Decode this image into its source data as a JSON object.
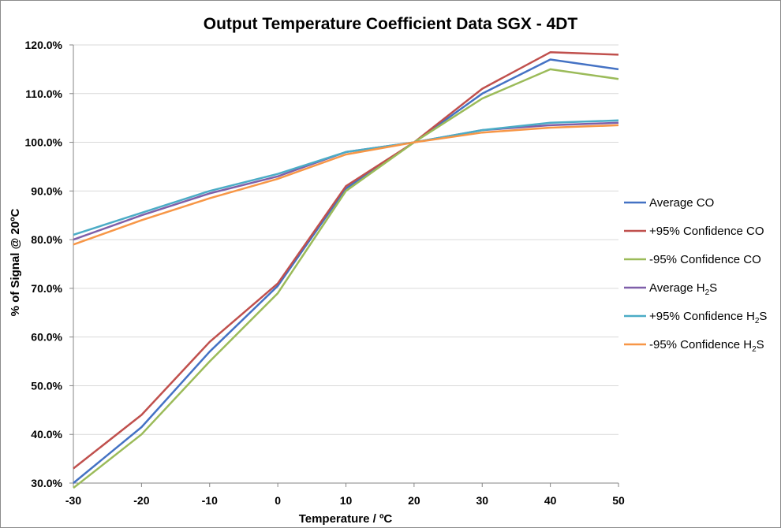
{
  "chart_data": {
    "type": "line",
    "title": "Output Temperature Coefficient Data SGX - 4DT",
    "xlabel": "Temperature  / ºC",
    "ylabel": "% of Signal @ 20ºC",
    "x": [
      -30,
      -20,
      -10,
      0,
      10,
      20,
      30,
      40,
      50
    ],
    "xlim": [
      -30,
      50
    ],
    "ylim": [
      30,
      120
    ],
    "x_ticks": [
      "-30",
      "-20",
      "-10",
      "0",
      "10",
      "20",
      "30",
      "40",
      "50"
    ],
    "y_ticks": [
      "30.0%",
      "40.0%",
      "50.0%",
      "60.0%",
      "70.0%",
      "80.0%",
      "90.0%",
      "100.0%",
      "110.0%",
      "120.0%"
    ],
    "grid": true,
    "legend_position": "right",
    "series": [
      {
        "name": "Average CO",
        "label_main": "Average CO",
        "label_sub": "",
        "label_tail": "",
        "color": "#4472C4",
        "values": [
          30,
          41.5,
          57,
          70.5,
          90.5,
          100,
          110,
          117,
          115
        ]
      },
      {
        "name": "+95% Confidence CO",
        "label_main": "+95% Confidence CO",
        "label_sub": "",
        "label_tail": "",
        "color": "#C0504D",
        "values": [
          33,
          44,
          59,
          71,
          91,
          100,
          111,
          118.5,
          118
        ]
      },
      {
        "name": "-95% Confidence CO",
        "label_main": "-95% Confidence CO",
        "label_sub": "",
        "label_tail": "",
        "color": "#9BBB59",
        "values": [
          29,
          40,
          55,
          69,
          90,
          100,
          109,
          115,
          113
        ]
      },
      {
        "name": "Average H2S",
        "label_main": "Average H",
        "label_sub": "2",
        "label_tail": "S",
        "color": "#7F5FA9",
        "values": [
          80,
          85,
          89.5,
          93,
          98,
          100,
          102.5,
          103.5,
          104
        ]
      },
      {
        "name": "+95% Confidence H2S",
        "label_main": "+95% Confidence H",
        "label_sub": "2",
        "label_tail": "S",
        "color": "#4BACC6",
        "values": [
          81,
          85.5,
          90,
          93.5,
          98,
          100,
          102.5,
          104,
          104.5
        ]
      },
      {
        "name": "-95% Confidence H2S",
        "label_main": "-95% Confidence H",
        "label_sub": "2",
        "label_tail": "S",
        "color": "#F79646",
        "values": [
          79,
          84,
          88.5,
          92.5,
          97.5,
          100,
          102,
          103,
          103.5
        ]
      }
    ]
  }
}
